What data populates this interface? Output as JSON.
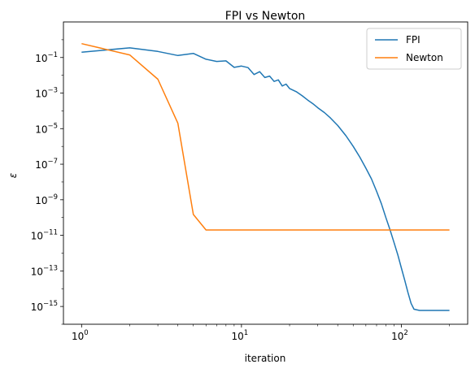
{
  "chart_data": {
    "type": "line",
    "title": "FPI vs Newton",
    "xlabel": "iteration",
    "ylabel": "ε",
    "xscale": "log",
    "yscale": "log",
    "xlim": [
      0.77,
      260
    ],
    "ylim": [
      1e-16,
      10.0
    ],
    "grid": false,
    "legend": {
      "position": "top-right",
      "entries": [
        "FPI",
        "Newton"
      ]
    },
    "x_ticks": [
      {
        "value": 1,
        "base": "10",
        "exp": "0"
      },
      {
        "value": 10,
        "base": "10",
        "exp": "1"
      },
      {
        "value": 100,
        "base": "10",
        "exp": "2"
      }
    ],
    "y_ticks": [
      {
        "value": 0.1,
        "base": "10",
        "exp": "−1"
      },
      {
        "value": 0.001,
        "base": "10",
        "exp": "−3"
      },
      {
        "value": 1e-05,
        "base": "10",
        "exp": "−5"
      },
      {
        "value": 1e-07,
        "base": "10",
        "exp": "−7"
      },
      {
        "value": 1e-09,
        "base": "10",
        "exp": "−9"
      },
      {
        "value": 1e-11,
        "base": "10",
        "exp": "−11"
      },
      {
        "value": 1e-13,
        "base": "10",
        "exp": "−13"
      },
      {
        "value": 1e-15,
        "base": "10",
        "exp": "−15"
      }
    ],
    "series": [
      {
        "name": "FPI",
        "color": "#1f77b4",
        "points": [
          [
            1,
            0.2
          ],
          [
            2,
            0.35
          ],
          [
            3,
            0.22
          ],
          [
            4,
            0.13
          ],
          [
            5,
            0.17
          ],
          [
            6,
            0.08
          ],
          [
            7,
            0.06
          ],
          [
            8,
            0.065
          ],
          [
            9,
            0.028
          ],
          [
            10,
            0.033
          ],
          [
            11,
            0.027
          ],
          [
            12,
            0.011
          ],
          [
            13,
            0.016
          ],
          [
            14,
            0.0075
          ],
          [
            15,
            0.009
          ],
          [
            16,
            0.0045
          ],
          [
            17,
            0.0055
          ],
          [
            18,
            0.0025
          ],
          [
            19,
            0.0032
          ],
          [
            20,
            0.0018
          ],
          [
            22,
            0.0012
          ],
          [
            24,
            0.0007
          ],
          [
            26,
            0.0004
          ],
          [
            28,
            0.00025
          ],
          [
            30,
            0.00015
          ],
          [
            33,
            8e-05
          ],
          [
            36,
            4e-05
          ],
          [
            40,
            1.5e-05
          ],
          [
            45,
            4e-06
          ],
          [
            50,
            1e-06
          ],
          [
            55,
            2.5e-07
          ],
          [
            60,
            6e-08
          ],
          [
            65,
            1.5e-08
          ],
          [
            70,
            3e-09
          ],
          [
            75,
            6e-10
          ],
          [
            80,
            1e-10
          ],
          [
            85,
            2e-11
          ],
          [
            90,
            4e-12
          ],
          [
            95,
            8e-13
          ],
          [
            100,
            1.5e-13
          ],
          [
            105,
            3e-14
          ],
          [
            110,
            6e-15
          ],
          [
            115,
            1.5e-15
          ],
          [
            120,
            7e-16
          ],
          [
            130,
            6e-16
          ],
          [
            150,
            6e-16
          ],
          [
            170,
            6e-16
          ],
          [
            200,
            6e-16
          ]
        ]
      },
      {
        "name": "Newton",
        "color": "#ff7f0e",
        "points": [
          [
            1,
            0.6
          ],
          [
            2,
            0.14
          ],
          [
            3,
            0.006
          ],
          [
            4,
            2e-05
          ],
          [
            5,
            1.5e-10
          ],
          [
            6,
            2e-11
          ],
          [
            10,
            2e-11
          ],
          [
            50,
            2e-11
          ],
          [
            100,
            2e-11
          ],
          [
            200,
            2e-11
          ]
        ]
      }
    ]
  }
}
